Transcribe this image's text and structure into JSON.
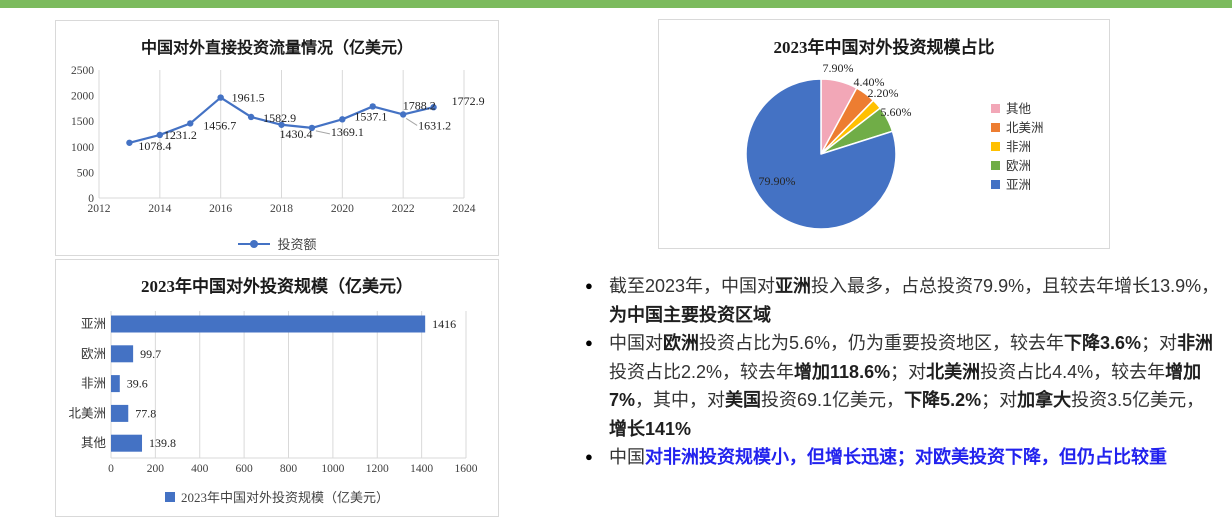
{
  "accent": {
    "top_bar_color": "#7CBB5E"
  },
  "colors": {
    "series_blue": "#4472C4",
    "grid": "#D9D9D9",
    "leader": "#A6A6A6",
    "note_blue": "#2222EE"
  },
  "chart_data": [
    {
      "type": "line",
      "title": "中国对外直接投资流量情况（亿美元）",
      "legend": "投资额",
      "legend_position": "bottom",
      "x": [
        2013,
        2014,
        2015,
        2016,
        2017,
        2018,
        2019,
        2020,
        2021,
        2022,
        2023
      ],
      "values": [
        1078.4,
        1231.2,
        1456.7,
        1961.5,
        1582.9,
        1430.4,
        1369.1,
        1537.1,
        1788.2,
        1631.2,
        1772.9
      ],
      "value_labels": [
        "1078.4",
        "1231.2",
        "1456.7",
        "1961.5",
        "1582.9",
        "1430.4",
        "1369.1",
        "1537.1",
        "1788.2",
        "1631.2",
        "1772.9"
      ],
      "xticks": [
        2012,
        2014,
        2016,
        2018,
        2020,
        2022,
        2024
      ],
      "yticks": [
        0,
        500,
        1000,
        1500,
        2000,
        2500
      ],
      "xlim": [
        2012,
        2024
      ],
      "ylim": [
        0,
        2500
      ],
      "grid": "vertical",
      "series_color": "#4472C4"
    },
    {
      "type": "bar",
      "orientation": "horizontal",
      "title": "2023年中国对外投资规模（亿美元）",
      "legend": "2023年中国对外投资规模（亿美元）",
      "legend_position": "bottom",
      "categories": [
        "亚洲",
        "欧洲",
        "非洲",
        "北美洲",
        "其他"
      ],
      "values": [
        1416,
        99.7,
        39.6,
        77.8,
        139.8
      ],
      "value_labels": [
        "1416",
        "99.7",
        "39.6",
        "77.8",
        "139.8"
      ],
      "xticks": [
        0,
        200,
        400,
        600,
        800,
        1000,
        1200,
        1400,
        1600
      ],
      "xlim": [
        0,
        1600
      ],
      "grid": "vertical",
      "bar_color": "#4472C4"
    },
    {
      "type": "pie",
      "title": "2023年中国对外投资规模占比",
      "legend_position": "right",
      "slices": [
        {
          "label": "其他",
          "value": 7.9,
          "display": "7.90%",
          "color": "#F2A7B7"
        },
        {
          "label": "北美洲",
          "value": 4.4,
          "display": "4.40%",
          "color": "#ED7D31"
        },
        {
          "label": "非洲",
          "value": 2.2,
          "display": "2.20%",
          "color": "#FFC000"
        },
        {
          "label": "欧洲",
          "value": 5.6,
          "display": "5.60%",
          "color": "#70AD47"
        },
        {
          "label": "亚洲",
          "value": 79.9,
          "display": "79.90%",
          "color": "#4472C4"
        }
      ]
    }
  ],
  "notes": {
    "bullet_glyph": "●",
    "bullets": [
      {
        "segments": [
          {
            "t": "截至2023年，中国对"
          },
          {
            "t": "亚洲",
            "b": true
          },
          {
            "t": "投入最多，占总投资79.9%，且较去年增长13.9%，"
          },
          {
            "t": "为中国主要投资区域",
            "b": true
          }
        ]
      },
      {
        "segments": [
          {
            "t": "中国对"
          },
          {
            "t": "欧洲",
            "b": true
          },
          {
            "t": "投资占比为5.6%，仍为重要投资地区，较去年"
          },
          {
            "t": "下降3.6%",
            "b": true
          },
          {
            "t": "；对"
          },
          {
            "t": "非洲",
            "b": true
          },
          {
            "t": "投资占比2.2%，较去年"
          },
          {
            "t": "增加118.6%",
            "b": true
          },
          {
            "t": "；对"
          },
          {
            "t": "北美洲",
            "b": true
          },
          {
            "t": "投资占比4.4%，较去年"
          },
          {
            "t": "增加7%",
            "b": true
          },
          {
            "t": "，其中，对"
          },
          {
            "t": "美国",
            "b": true
          },
          {
            "t": "投资69.1亿美元，"
          },
          {
            "t": "下降5.2%",
            "b": true
          },
          {
            "t": "；对"
          },
          {
            "t": "加拿大",
            "b": true
          },
          {
            "t": "投资3.5亿美元，"
          },
          {
            "t": "增长141%",
            "b": true
          }
        ]
      },
      {
        "segments": [
          {
            "t": "中国"
          },
          {
            "t": "对非洲投资规模小，但增长迅速；对欧美投资下降，但仍占比较重",
            "b": true,
            "blue": true
          }
        ]
      }
    ]
  }
}
